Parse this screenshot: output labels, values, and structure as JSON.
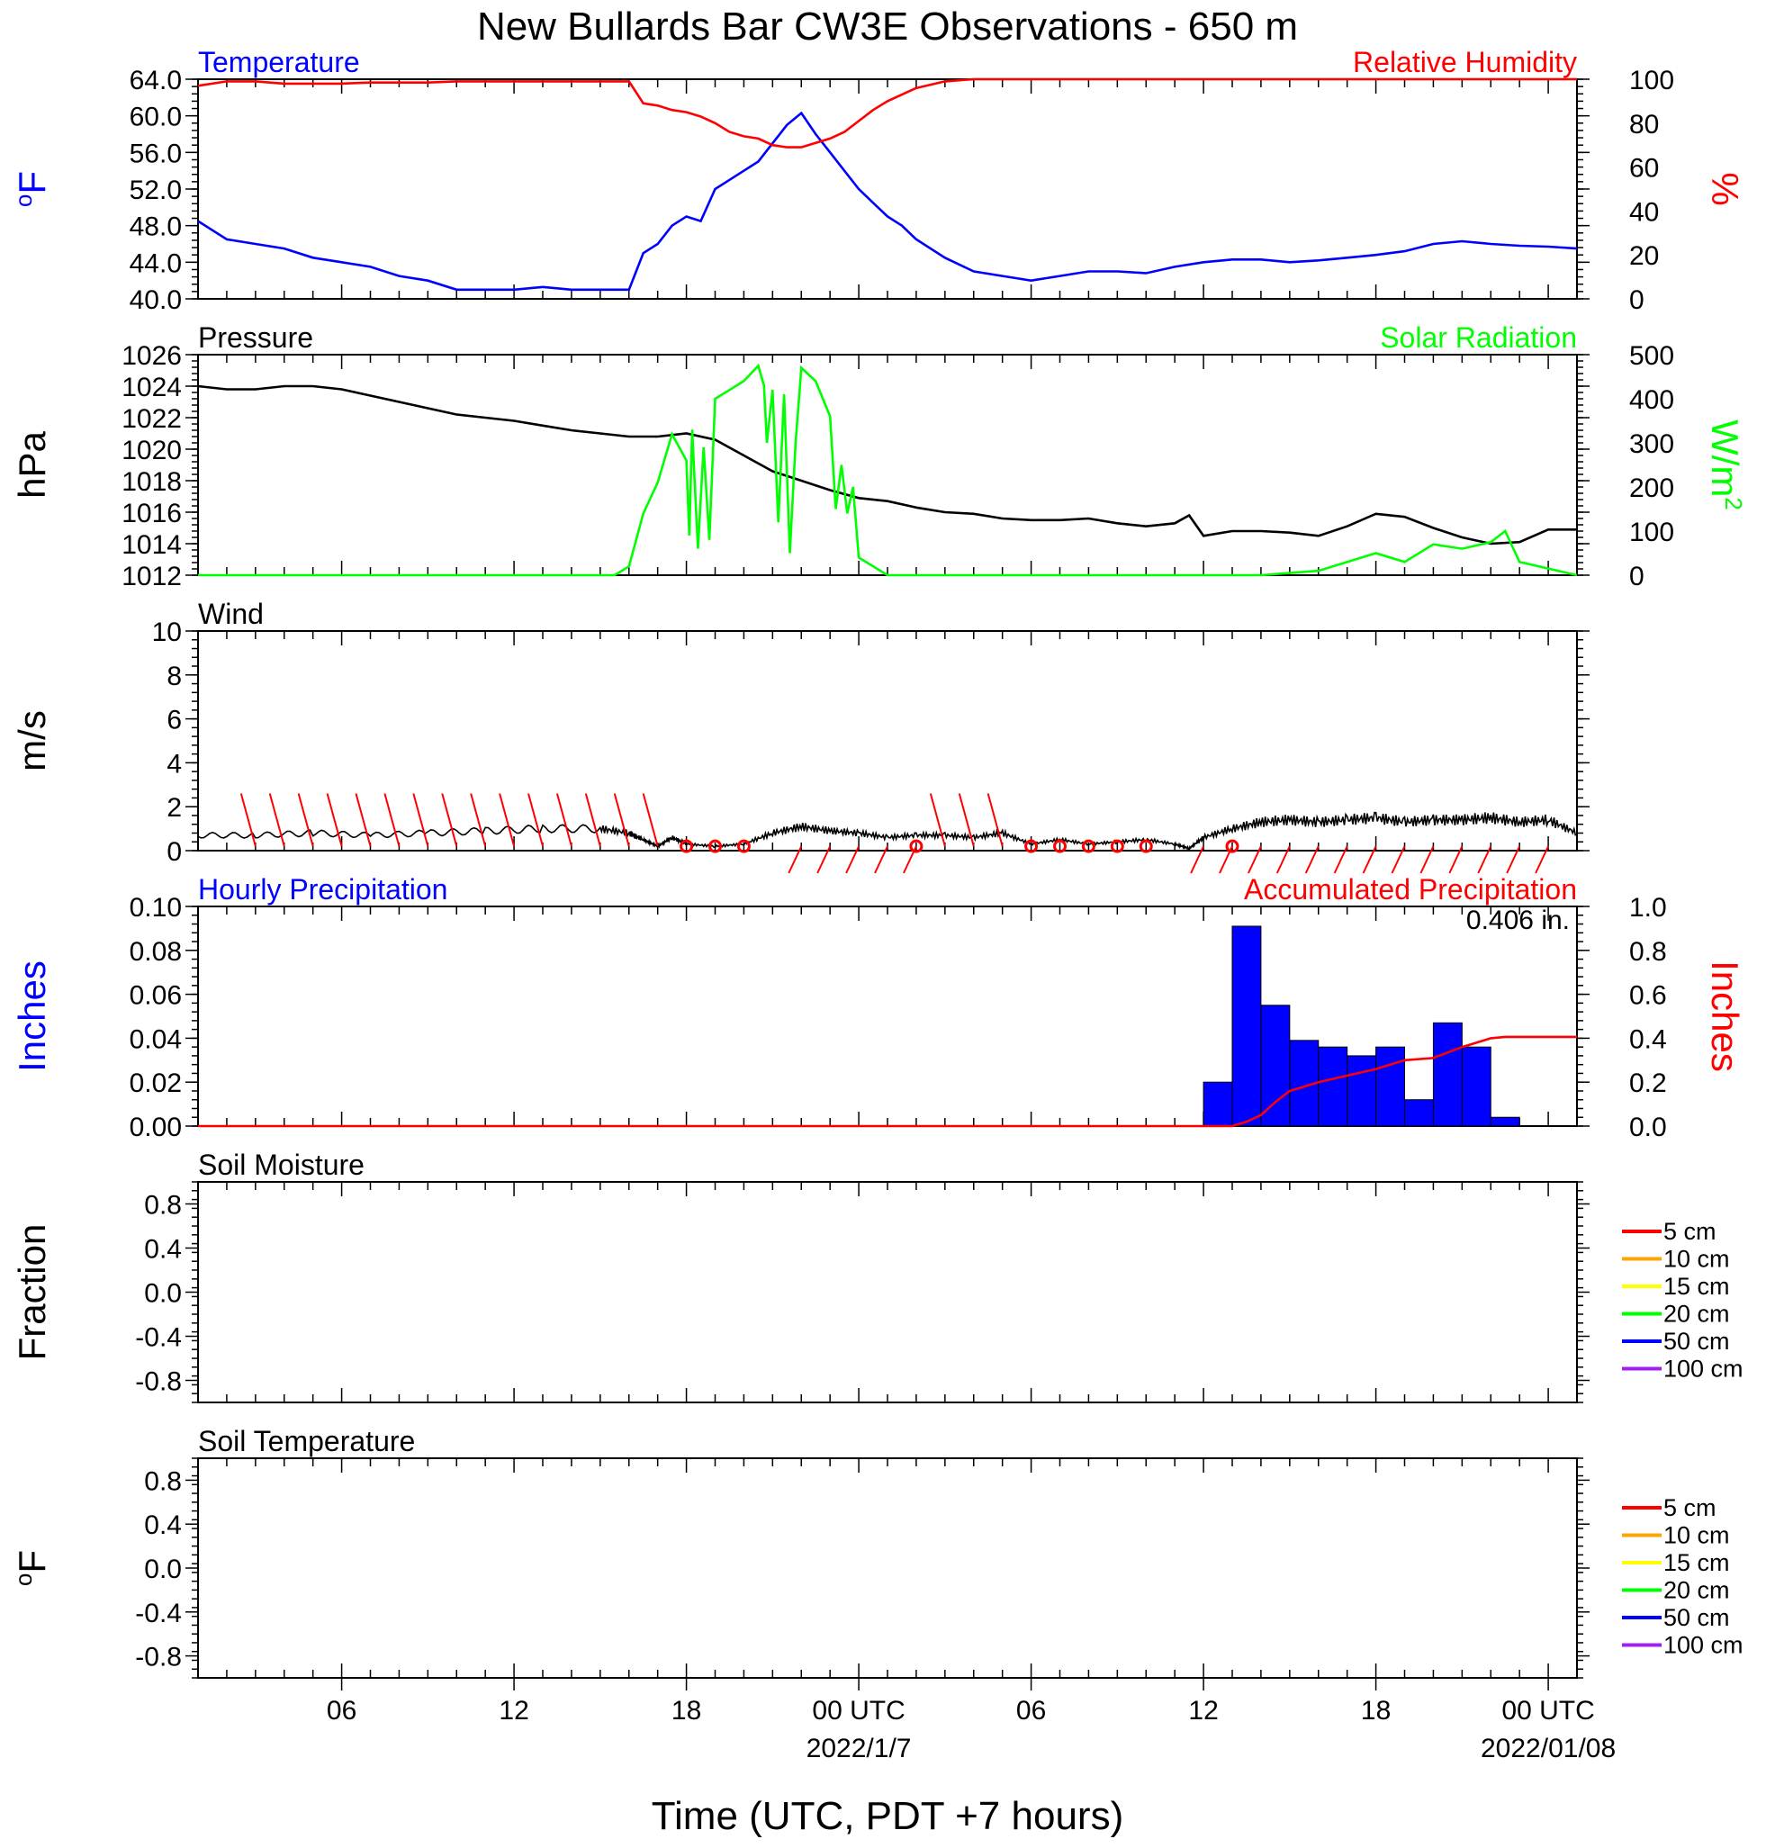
{
  "title": "New Bullards Bar CW3E Observations - 650 m",
  "x_axis": {
    "label": "Time (UTC, PDT +7 hours)",
    "ticks": [
      {
        "h": 6,
        "label": "06",
        "date": ""
      },
      {
        "h": 12,
        "label": "12",
        "date": ""
      },
      {
        "h": 18,
        "label": "18",
        "date": ""
      },
      {
        "h": 24,
        "label": "00 UTC",
        "date": "2022/1/7"
      },
      {
        "h": 30,
        "label": "06",
        "date": ""
      },
      {
        "h": 36,
        "label": "12",
        "date": ""
      },
      {
        "h": 42,
        "label": "18",
        "date": ""
      },
      {
        "h": 48,
        "label": "00 UTC",
        "date": "2022/01/08"
      }
    ]
  },
  "legend_soil": [
    {
      "label": "5 cm",
      "color": "#ff0000"
    },
    {
      "label": "10 cm",
      "color": "#ffa500"
    },
    {
      "label": "15 cm",
      "color": "#ffff00"
    },
    {
      "label": "20 cm",
      "color": "#00ff00"
    },
    {
      "label": "50 cm",
      "color": "#0000ff"
    },
    {
      "label": "100 cm",
      "color": "#a020f0"
    }
  ],
  "chart_data": [
    {
      "id": "temp_rh",
      "type": "line",
      "x_range": [
        1,
        49
      ],
      "left": {
        "title": "Temperature",
        "unit": "°F",
        "color": "#0000ff",
        "ylim": [
          40,
          64
        ],
        "ticks": [
          "40.0",
          "44.0",
          "48.0",
          "52.0",
          "56.0",
          "60.0",
          "64.0"
        ]
      },
      "right": {
        "title": "Relative Humidity",
        "unit": "%",
        "color": "#ff0000",
        "ylim": [
          0,
          100
        ],
        "ticks": [
          "0",
          "20",
          "40",
          "60",
          "80",
          "100"
        ]
      },
      "series": [
        {
          "name": "Temperature",
          "axis": "left",
          "color": "#0000ff",
          "x": [
            1,
            2,
            3,
            4,
            5,
            6,
            7,
            8,
            9,
            10,
            11,
            12,
            13,
            14,
            15,
            16,
            16.5,
            17,
            17.5,
            18,
            18.5,
            19,
            19.5,
            20,
            20.5,
            21,
            21.5,
            22,
            22.5,
            23,
            23.5,
            24,
            24.5,
            25,
            25.5,
            26,
            27,
            28,
            29,
            30,
            31,
            32,
            33,
            34,
            35,
            36,
            37,
            38,
            39,
            40,
            41,
            42,
            43,
            44,
            45,
            46,
            47,
            48,
            49
          ],
          "values": [
            48.5,
            46.5,
            46,
            45.5,
            44.5,
            44,
            43.5,
            42.5,
            42,
            41,
            41,
            41,
            41.3,
            41,
            41,
            41,
            45,
            46,
            48,
            49,
            48.5,
            52,
            53,
            54,
            55,
            57,
            59,
            60.3,
            58,
            56,
            54,
            52,
            50.5,
            49,
            48,
            46.5,
            44.5,
            43,
            42.5,
            42,
            42.5,
            43,
            43,
            42.8,
            43.5,
            44,
            44.3,
            44.3,
            44,
            44.2,
            44.5,
            44.8,
            45.2,
            46,
            46.3,
            46,
            45.8,
            45.7,
            45.5
          ]
        },
        {
          "name": "Relative Humidity",
          "axis": "right",
          "color": "#ff0000",
          "x": [
            1,
            2,
            3,
            4,
            5,
            6,
            7,
            8,
            9,
            10,
            11,
            12,
            13,
            14,
            15,
            16,
            16.5,
            17,
            17.5,
            18,
            18.5,
            19,
            19.5,
            20,
            20.5,
            21,
            21.5,
            22,
            22.5,
            23,
            23.5,
            24,
            24.5,
            25,
            25.5,
            26,
            27,
            28,
            29,
            30,
            31,
            32,
            33,
            34,
            35,
            36,
            37,
            38,
            39,
            40,
            41,
            42,
            43,
            44,
            45,
            46,
            47,
            48,
            49
          ],
          "values": [
            97,
            99,
            99,
            98,
            98,
            98,
            98.5,
            98.5,
            98.5,
            99,
            99,
            99,
            99,
            99,
            99,
            99,
            89,
            88,
            86,
            85,
            83,
            80,
            76,
            74,
            73,
            70,
            69,
            69,
            71,
            73,
            76,
            81,
            86,
            90,
            93,
            96,
            99,
            100,
            100,
            100,
            100,
            100,
            100,
            100,
            100,
            100,
            100,
            100,
            100,
            100,
            100,
            100,
            100,
            100,
            100,
            100,
            100,
            100,
            100
          ]
        }
      ]
    },
    {
      "id": "pres_solar",
      "type": "line",
      "x_range": [
        1,
        49
      ],
      "left": {
        "title": "Pressure",
        "unit": "hPa",
        "color": "#000000",
        "ylim": [
          1012,
          1026
        ],
        "ticks": [
          "1012",
          "1014",
          "1016",
          "1018",
          "1020",
          "1022",
          "1024",
          "1026"
        ]
      },
      "right": {
        "title": "Solar Radiation",
        "unit": "W/m",
        "unit_sup": "2",
        "color": "#00ff00",
        "ylim": [
          0,
          500
        ],
        "ticks": [
          "0",
          "100",
          "200",
          "300",
          "400",
          "500"
        ]
      },
      "series": [
        {
          "name": "Pressure",
          "axis": "left",
          "color": "#000000",
          "x": [
            1,
            2,
            3,
            4,
            5,
            6,
            7,
            8,
            9,
            10,
            11,
            12,
            13,
            14,
            15,
            16,
            17,
            18,
            19,
            20,
            21,
            22,
            23,
            24,
            25,
            26,
            27,
            28,
            29,
            30,
            31,
            32,
            33,
            34,
            35,
            35.5,
            36,
            37,
            38,
            39,
            40,
            41,
            42,
            43,
            44,
            45,
            46,
            47,
            48,
            49
          ],
          "values": [
            1024,
            1023.8,
            1023.8,
            1024,
            1024,
            1023.8,
            1023.4,
            1023,
            1022.6,
            1022.2,
            1022,
            1021.8,
            1021.5,
            1021.2,
            1021,
            1020.8,
            1020.8,
            1021,
            1020.6,
            1019.6,
            1018.6,
            1018,
            1017.4,
            1016.9,
            1016.7,
            1016.3,
            1016,
            1015.9,
            1015.6,
            1015.5,
            1015.5,
            1015.6,
            1015.3,
            1015.1,
            1015.3,
            1015.8,
            1014.5,
            1014.8,
            1014.8,
            1014.7,
            1014.5,
            1015.1,
            1015.9,
            1015.7,
            1015,
            1014.4,
            1014,
            1014.1,
            1014.9,
            1014.9
          ]
        },
        {
          "name": "Solar Radiation",
          "axis": "right",
          "color": "#00ff00",
          "x": [
            1,
            15.5,
            16,
            16.5,
            17,
            17.5,
            18,
            18.1,
            18.2,
            18.4,
            18.6,
            18.8,
            19,
            19.5,
            20,
            20.5,
            20.7,
            20.8,
            21,
            21.2,
            21.4,
            21.6,
            21.8,
            22,
            22.5,
            23,
            23.2,
            23.4,
            23.6,
            23.8,
            24,
            25,
            30,
            38,
            40,
            42,
            43,
            44,
            45,
            46,
            46.5,
            47,
            48,
            49
          ],
          "values": [
            0,
            0,
            20,
            140,
            210,
            320,
            260,
            90,
            330,
            60,
            290,
            80,
            400,
            420,
            440,
            475,
            430,
            300,
            420,
            120,
            410,
            50,
            300,
            470,
            440,
            360,
            150,
            250,
            140,
            200,
            40,
            0,
            0,
            0,
            10,
            50,
            30,
            70,
            60,
            75,
            100,
            30,
            15,
            0
          ]
        }
      ]
    },
    {
      "id": "wind",
      "type": "line",
      "x_range": [
        1,
        49
      ],
      "left": {
        "title": "Wind",
        "unit": "m/s",
        "color": "#000000",
        "ylim": [
          0,
          10
        ],
        "ticks": [
          "0",
          "2",
          "4",
          "6",
          "8",
          "10"
        ]
      },
      "series": [
        {
          "name": "Wind",
          "axis": "left",
          "color": "#000000",
          "x": [
            1,
            3,
            5,
            7,
            9,
            11,
            13,
            15,
            16,
            16.5,
            17,
            17.5,
            18,
            19,
            20,
            21,
            22,
            23,
            24,
            25,
            26,
            27,
            28,
            29,
            30,
            31,
            32,
            33,
            34,
            35,
            35.5,
            36,
            37,
            38,
            39,
            40,
            41,
            42,
            43,
            44,
            45,
            46,
            47,
            48,
            49
          ],
          "values": [
            0.7,
            0.7,
            0.8,
            0.7,
            0.8,
            0.9,
            1.0,
            1.0,
            0.8,
            0.5,
            0.2,
            0.6,
            0.3,
            0.2,
            0.3,
            0.8,
            1.1,
            0.9,
            0.8,
            0.6,
            0.7,
            0.7,
            0.6,
            0.8,
            0.3,
            0.5,
            0.3,
            0.4,
            0.5,
            0.3,
            0.1,
            0.6,
            1.0,
            1.3,
            1.4,
            1.3,
            1.4,
            1.5,
            1.3,
            1.4,
            1.4,
            1.5,
            1.3,
            1.4,
            0.8
          ]
        },
        {
          "name": "Wind barbs",
          "color": "#ff0000",
          "barbs_x": [
            3,
            4,
            5,
            6,
            7,
            8,
            9,
            10,
            11,
            12,
            13,
            14,
            15,
            16,
            17,
            22,
            23,
            24,
            25,
            26,
            27,
            28,
            29,
            36,
            37,
            38,
            39,
            40,
            41,
            42,
            43,
            44,
            45,
            46,
            47,
            48
          ],
          "barbs_up": [
            true,
            true,
            true,
            true,
            true,
            true,
            true,
            true,
            true,
            true,
            true,
            true,
            true,
            true,
            true,
            false,
            false,
            false,
            false,
            false,
            true,
            true,
            true,
            false,
            false,
            false,
            false,
            false,
            false,
            false,
            false,
            false,
            false,
            false,
            false,
            false
          ],
          "calm_x": [
            18,
            19,
            20,
            26,
            30,
            31,
            32,
            33,
            34,
            37
          ]
        }
      ]
    },
    {
      "id": "precip",
      "type": "bar",
      "x_range": [
        1,
        49
      ],
      "left": {
        "title": "Hourly Precipitation",
        "unit": "Inches",
        "color": "#0000ff",
        "ylim": [
          0,
          0.1
        ],
        "ticks": [
          "0.00",
          "0.02",
          "0.04",
          "0.06",
          "0.08",
          "0.10"
        ]
      },
      "right": {
        "title": "Accumulated Precipitation",
        "unit": "Inches",
        "color": "#ff0000",
        "ylim": [
          0,
          1.0
        ],
        "ticks": [
          "0.0",
          "0.2",
          "0.4",
          "0.6",
          "0.8",
          "1.0"
        ]
      },
      "annotation": "0.406 in.",
      "series": [
        {
          "name": "Hourly Precipitation",
          "axis": "left",
          "color": "#0000ff",
          "categories": [
            37,
            38,
            39,
            40,
            41,
            42,
            43,
            44,
            45,
            46,
            47,
            48
          ],
          "values": [
            0.02,
            0.091,
            0.055,
            0.039,
            0.036,
            0.032,
            0.036,
            0.012,
            0.047,
            0.036,
            0.004,
            0.0
          ]
        },
        {
          "name": "Accumulated Precipitation",
          "axis": "right",
          "color": "#ff0000",
          "x": [
            1,
            37,
            37.5,
            38,
            38.5,
            39,
            40,
            41,
            42,
            43,
            44,
            45,
            46,
            46.5,
            47,
            48,
            49
          ],
          "values": [
            0,
            0,
            0.02,
            0.05,
            0.11,
            0.16,
            0.2,
            0.23,
            0.26,
            0.3,
            0.31,
            0.36,
            0.4,
            0.406,
            0.406,
            0.406,
            0.406
          ]
        }
      ]
    },
    {
      "id": "soil_moist",
      "type": "line",
      "x_range": [
        1,
        49
      ],
      "left": {
        "title": "Soil Moisture",
        "unit": "Fraction",
        "color": "#000000",
        "ylim": [
          -1,
          1
        ],
        "ticks": [
          "-0.8",
          "-0.4",
          "0.0",
          "0.4",
          "0.8"
        ]
      },
      "series": []
    },
    {
      "id": "soil_temp",
      "type": "line",
      "x_range": [
        1,
        49
      ],
      "left": {
        "title": "Soil Temperature",
        "unit": "°F",
        "color": "#000000",
        "ylim": [
          -1,
          1
        ],
        "ticks": [
          "-0.8",
          "-0.4",
          "0.0",
          "0.4",
          "0.8"
        ]
      },
      "series": []
    }
  ]
}
